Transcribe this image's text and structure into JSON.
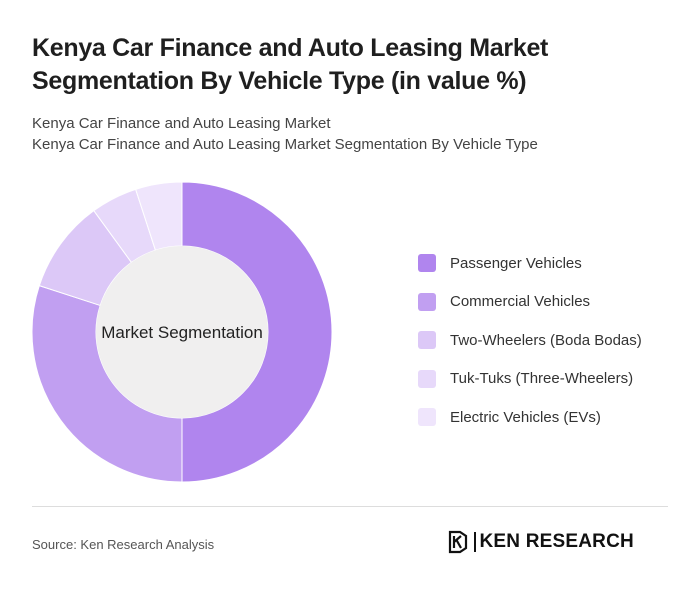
{
  "title": "Kenya Car Finance and Auto Leasing Market Segmentation By Vehicle Type (in value %)",
  "subtitle_line1": "Kenya Car Finance and Auto Leasing Market",
  "subtitle_line2": "Kenya Car Finance and Auto Leasing Market Segmentation By Vehicle Type",
  "center_label": "Market Segmentation",
  "source": "Source: Ken Research Analysis",
  "brand": {
    "name": "KEN RESEARCH",
    "logo_icon": "ken-research-k-logo-icon"
  },
  "chart_data": {
    "type": "pie",
    "variant": "donut",
    "categories": [
      "Passenger Vehicles",
      "Commercial Vehicles",
      "Two-Wheelers (Boda Bodas)",
      "Tuk-Tuks (Three-Wheelers)",
      "Electric Vehicles (EVs)"
    ],
    "values": [
      50,
      30,
      10,
      5,
      5
    ],
    "colors": [
      "#b085ee",
      "#c19ff1",
      "#dcc8f7",
      "#e7d9fa",
      "#efe5fc"
    ],
    "legend_position": "right"
  },
  "center_fill": "#f0efef"
}
